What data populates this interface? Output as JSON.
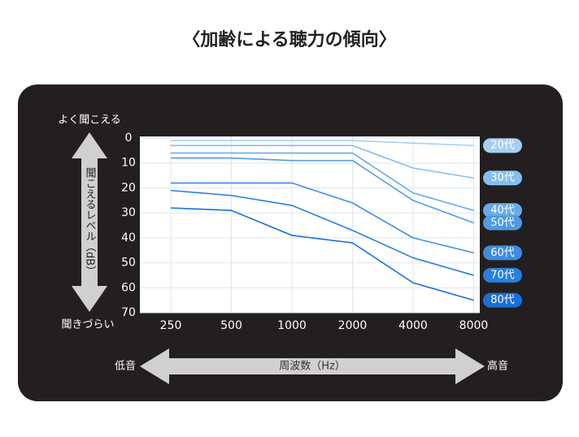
{
  "chart_data": {
    "type": "line",
    "title": "〈加齢による聴力の傾向〉",
    "y_top_label": "よく聞こえる",
    "y_bottom_label": "聞きづらい",
    "y_axis_label": "聞こえるレベル（dB）",
    "x_axis_label": "周波数（Hz）",
    "x_low_label": "低音",
    "x_high_label": "高音",
    "categories": [
      250,
      500,
      1000,
      2000,
      4000,
      8000
    ],
    "ylim": [
      0,
      70
    ],
    "yticks": [
      0,
      10,
      20,
      30,
      40,
      50,
      60,
      70
    ],
    "y_inverted": true,
    "grid": true,
    "series": [
      {
        "name": "20代",
        "color": "#a6d0f0",
        "values": [
          1,
          1,
          1,
          1,
          2,
          3
        ]
      },
      {
        "name": "30代",
        "color": "#86bdec",
        "values": [
          3,
          3,
          3,
          3,
          12,
          16
        ]
      },
      {
        "name": "40代",
        "color": "#67abe7",
        "values": [
          6,
          6,
          6,
          6,
          22,
          29
        ]
      },
      {
        "name": "50代",
        "color": "#4f9be3",
        "values": [
          8,
          8,
          9,
          9,
          25,
          34
        ]
      },
      {
        "name": "60代",
        "color": "#3d8de0",
        "values": [
          18,
          18,
          18,
          26,
          40,
          46
        ]
      },
      {
        "name": "70代",
        "color": "#2a7fdc",
        "values": [
          21,
          23,
          27,
          37,
          48,
          55
        ]
      },
      {
        "name": "80代",
        "color": "#1a6fd8",
        "values": [
          28,
          29,
          39,
          42,
          58,
          65
        ]
      }
    ]
  }
}
